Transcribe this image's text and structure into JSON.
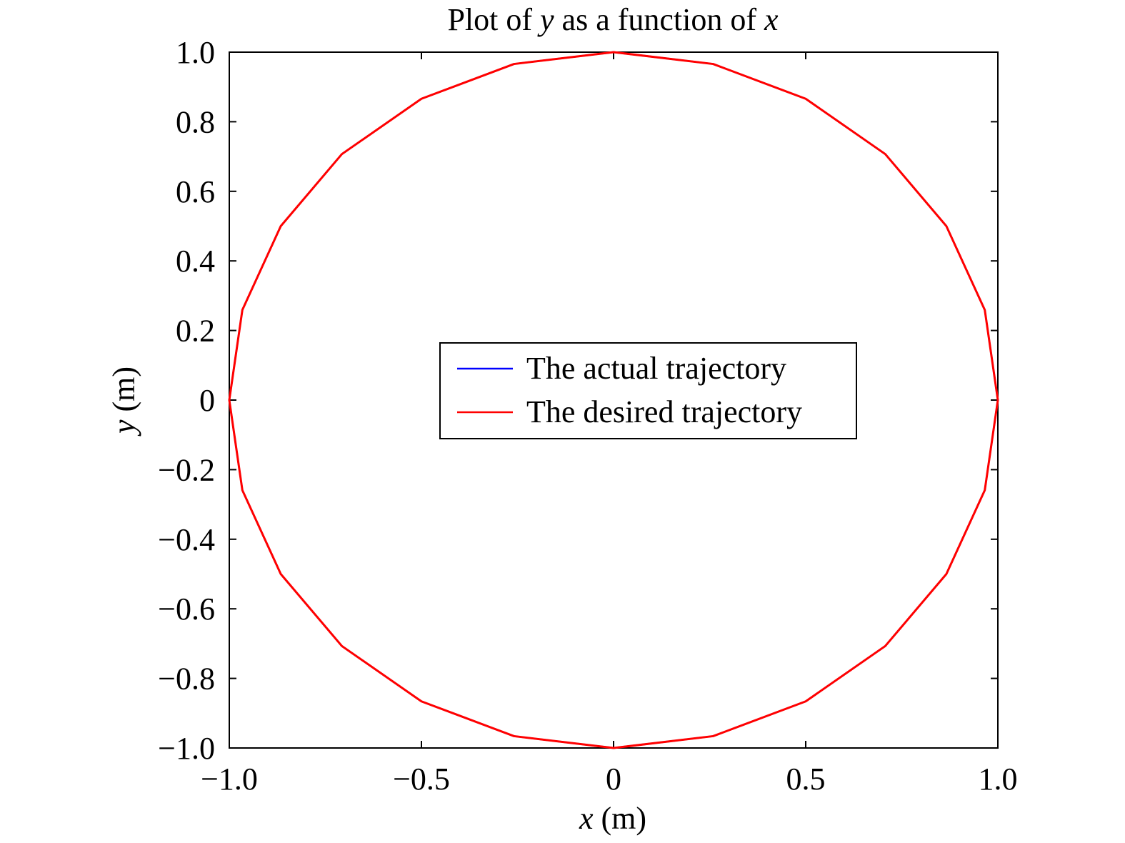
{
  "chart_data": {
    "type": "line",
    "title": {
      "prefix": "Plot of ",
      "var1": "y",
      "middle": " as a function of ",
      "var2": "x"
    },
    "xlabel": {
      "var": "x",
      "unit": " (m)"
    },
    "ylabel": {
      "var": "y",
      "unit": " (m)"
    },
    "xlim": [
      -1.0,
      1.0
    ],
    "ylim": [
      -1.0,
      1.0
    ],
    "xticks": [
      {
        "value": -1.0,
        "label": "−1.0"
      },
      {
        "value": -0.5,
        "label": "−0.5"
      },
      {
        "value": 0,
        "label": "0"
      },
      {
        "value": 0.5,
        "label": "0.5"
      },
      {
        "value": 1.0,
        "label": "1.0"
      }
    ],
    "yticks": [
      {
        "value": -1.0,
        "label": "−1.0"
      },
      {
        "value": -0.8,
        "label": "−0.8"
      },
      {
        "value": -0.6,
        "label": "−0.6"
      },
      {
        "value": -0.4,
        "label": "−0.4"
      },
      {
        "value": -0.2,
        "label": "−0.2"
      },
      {
        "value": 0,
        "label": "0"
      },
      {
        "value": 0.2,
        "label": "0.2"
      },
      {
        "value": 0.4,
        "label": "0.4"
      },
      {
        "value": 0.6,
        "label": "0.6"
      },
      {
        "value": 0.8,
        "label": "0.8"
      },
      {
        "value": 1.0,
        "label": "1.0"
      }
    ],
    "grid": false,
    "legend_placement": "center",
    "series": [
      {
        "name": "The actual trajectory",
        "color": "#0000ff",
        "x": [
          1.0,
          0.966,
          0.866,
          0.707,
          0.5,
          0.259,
          0.0,
          -0.259,
          -0.5,
          -0.707,
          -0.866,
          -0.966,
          -1.0,
          -0.966,
          -0.866,
          -0.707,
          -0.5,
          -0.259,
          0.0,
          0.259,
          0.5,
          0.707,
          0.866,
          0.966,
          1.0
        ],
        "y": [
          0.0,
          0.259,
          0.5,
          0.707,
          0.866,
          0.966,
          1.0,
          0.966,
          0.866,
          0.707,
          0.5,
          0.259,
          0.0,
          -0.259,
          -0.5,
          -0.707,
          -0.866,
          -0.966,
          -1.0,
          -0.966,
          -0.866,
          -0.707,
          -0.5,
          -0.259,
          0.0
        ]
      },
      {
        "name": "The desired trajectory",
        "color": "#ff0000",
        "x": [
          1.0,
          0.966,
          0.866,
          0.707,
          0.5,
          0.259,
          0.0,
          -0.259,
          -0.5,
          -0.707,
          -0.866,
          -0.966,
          -1.0,
          -0.966,
          -0.866,
          -0.707,
          -0.5,
          -0.259,
          0.0,
          0.259,
          0.5,
          0.707,
          0.866,
          0.966,
          1.0
        ],
        "y": [
          0.0,
          0.259,
          0.5,
          0.707,
          0.866,
          0.966,
          1.0,
          0.966,
          0.866,
          0.707,
          0.5,
          0.259,
          0.0,
          -0.259,
          -0.5,
          -0.707,
          -0.866,
          -0.966,
          -1.0,
          -0.966,
          -0.866,
          -0.707,
          -0.5,
          -0.259,
          0.0
        ]
      }
    ]
  }
}
